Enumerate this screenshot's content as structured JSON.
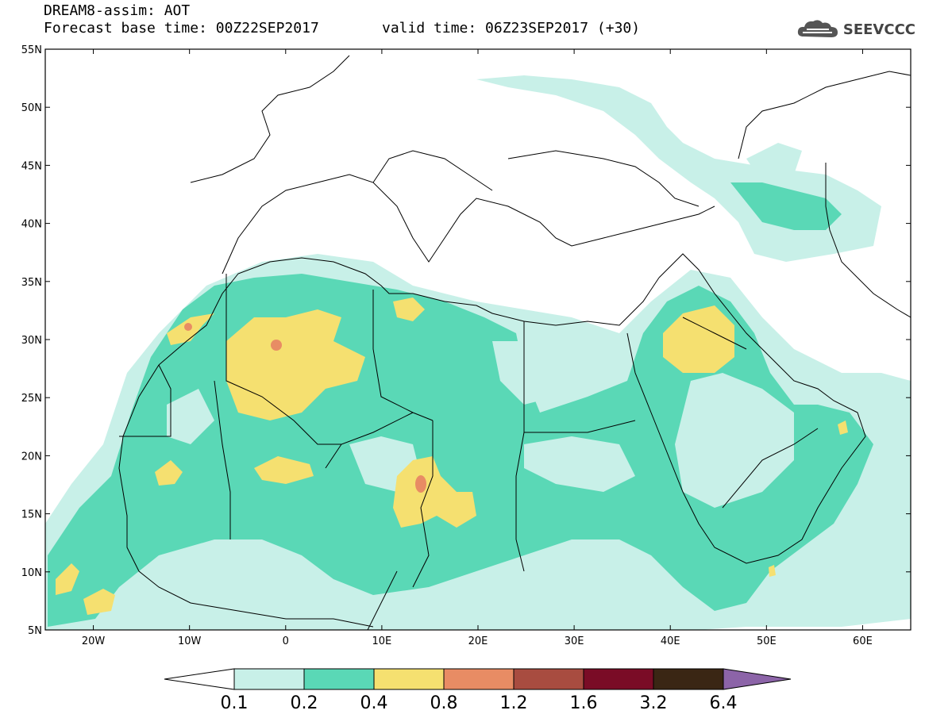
{
  "header": {
    "title": "DREAM8-assim: AOT",
    "base_time": "Forecast base time: 00Z22SEP2017",
    "valid_time": "valid time: 06Z23SEP2017 (+30)"
  },
  "logo": {
    "text": "SEEVCCC",
    "icon": "cloud-icon"
  },
  "map": {
    "lon_range": [
      -25,
      65
    ],
    "lat_range": [
      5,
      55
    ],
    "lat_ticks": [
      "55N",
      "50N",
      "45N",
      "40N",
      "35N",
      "30N",
      "25N",
      "20N",
      "15N",
      "10N",
      "5N"
    ],
    "lon_ticks": [
      "20W",
      "10W",
      "0",
      "10E",
      "20E",
      "30E",
      "40E",
      "50E",
      "60E"
    ]
  },
  "colorbar": {
    "labels": [
      "0.1",
      "0.2",
      "0.4",
      "0.8",
      "1.2",
      "1.6",
      "3.2",
      "6.4"
    ],
    "colors": {
      "below": "#ffffff",
      "c1": "#c8f0e8",
      "c2": "#5ad8b6",
      "c3": "#f5e070",
      "c4": "#e88c64",
      "c5": "#a84c40",
      "c6": "#7a0c26",
      "c7": "#3a2614",
      "above": "#8c64a8"
    }
  }
}
